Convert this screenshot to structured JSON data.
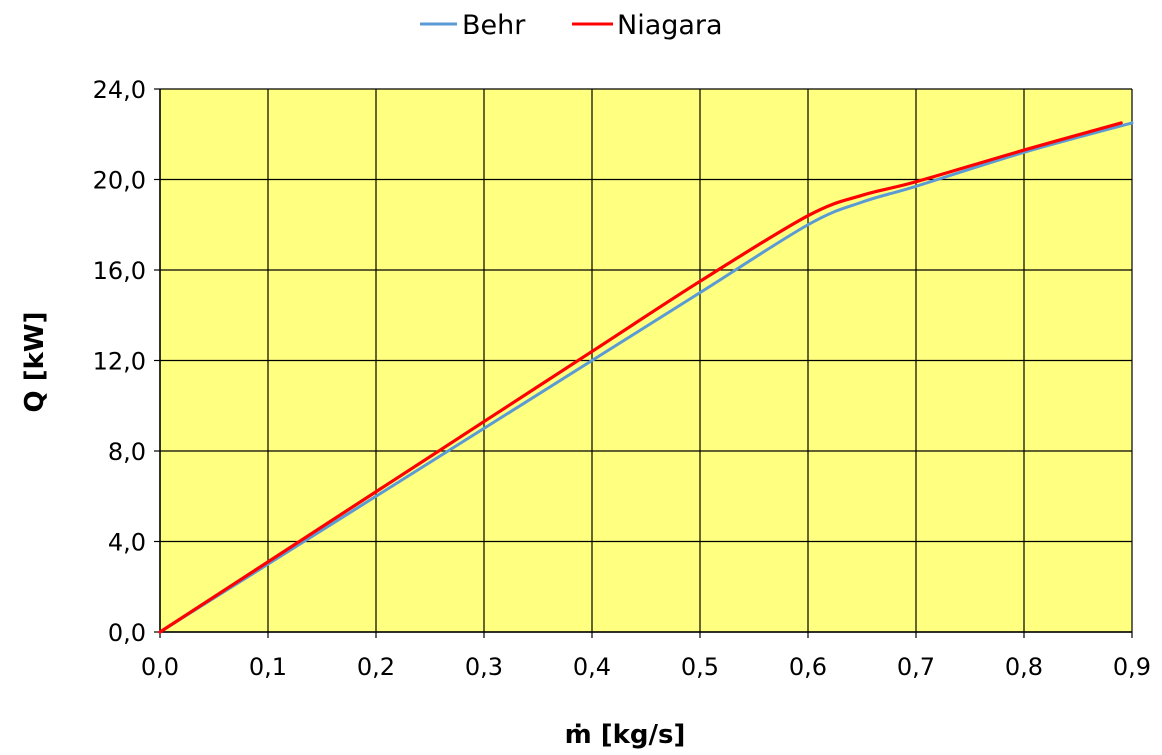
{
  "chart_data": {
    "type": "line",
    "title": "",
    "xlabel": "ṁ [kg/s]",
    "ylabel": "Q [kW]",
    "xlim": [
      0,
      0.9
    ],
    "ylim": [
      0,
      24
    ],
    "x_ticks": [
      "0,0",
      "0,1",
      "0,2",
      "0,3",
      "0,4",
      "0,5",
      "0,6",
      "0,7",
      "0,8",
      "0,9"
    ],
    "y_ticks": [
      "0,0",
      "4,0",
      "8,0",
      "12,0",
      "16,0",
      "20,0",
      "24,0"
    ],
    "grid": true,
    "legend_position": "top",
    "plot_background": "#FFFF80",
    "series": [
      {
        "name": "Behr",
        "color": "#5B9BD5",
        "points": [
          [
            0.0,
            0.0
          ],
          [
            0.1,
            3.0
          ],
          [
            0.2,
            6.0
          ],
          [
            0.3,
            9.0
          ],
          [
            0.4,
            12.0
          ],
          [
            0.5,
            15.0
          ],
          [
            0.6,
            18.0
          ],
          [
            0.65,
            19.0
          ],
          [
            0.7,
            19.7
          ],
          [
            0.8,
            21.2
          ],
          [
            0.9,
            22.5
          ]
        ]
      },
      {
        "name": "Niagara",
        "color": "#FF0000",
        "points": [
          [
            0.0,
            0.0
          ],
          [
            0.1,
            3.1
          ],
          [
            0.2,
            6.2
          ],
          [
            0.3,
            9.3
          ],
          [
            0.4,
            12.4
          ],
          [
            0.5,
            15.5
          ],
          [
            0.6,
            18.4
          ],
          [
            0.65,
            19.3
          ],
          [
            0.7,
            19.9
          ],
          [
            0.8,
            21.3
          ],
          [
            0.89,
            22.5
          ]
        ]
      }
    ]
  }
}
